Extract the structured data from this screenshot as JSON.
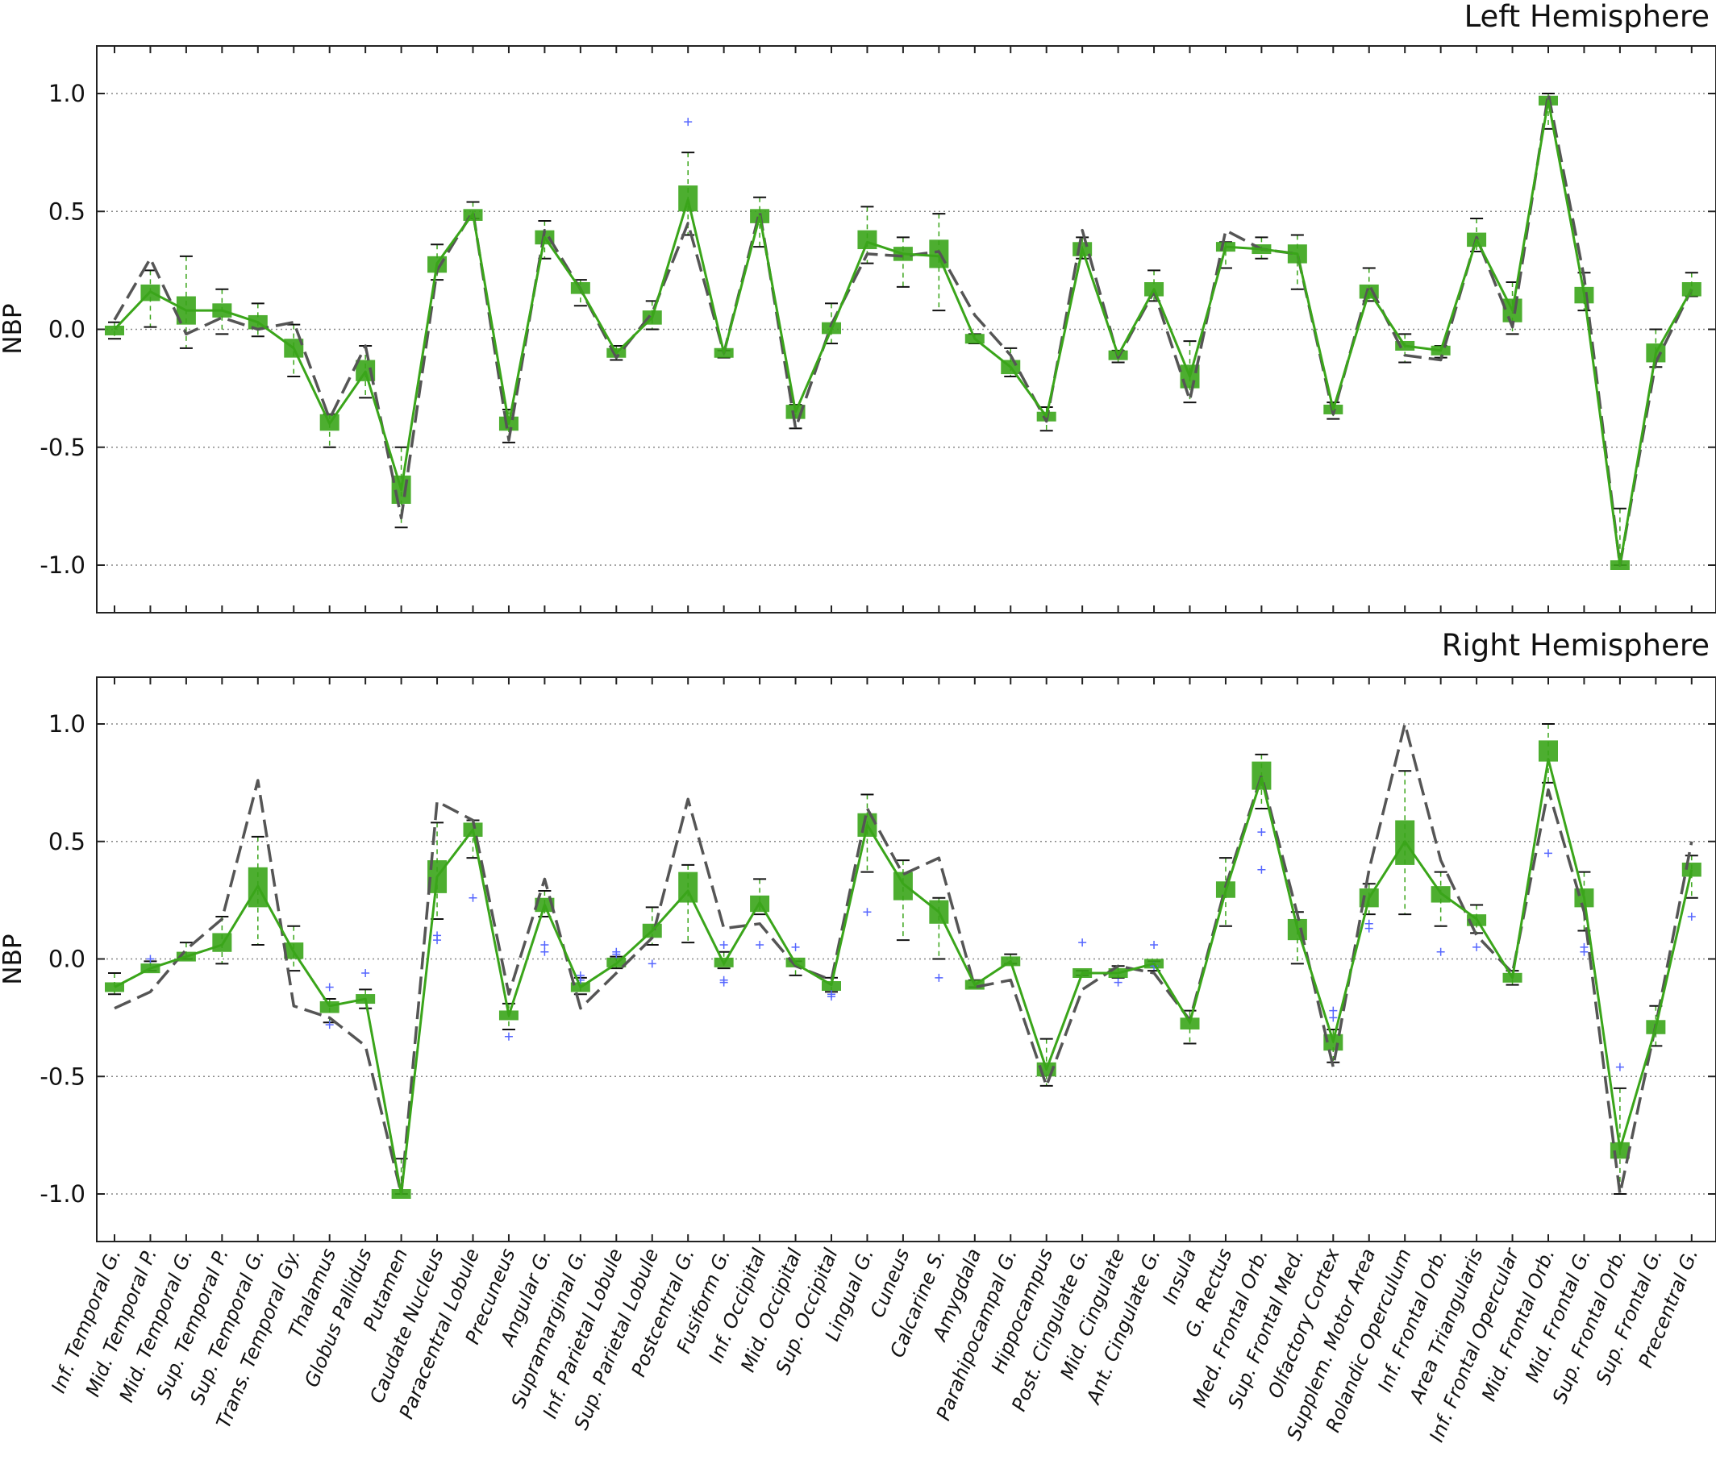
{
  "chart_data": [
    {
      "type": "line",
      "title": "Left Hemisphere",
      "ylabel": "NBP",
      "ylim": [
        -1.2,
        1.2
      ],
      "yticks": [
        1.0,
        0.5,
        0.0,
        -0.5,
        -1.0
      ],
      "ytick_labels": [
        "1.0",
        "0.5",
        "0.0",
        "-0.5",
        "-1.0"
      ],
      "grid": "horizontal dotted",
      "categories": [
        "Inf. Temporal G.",
        "Mid. Temporal P.",
        "Mid. Temporal G.",
        "Sup. Temporal P.",
        "Sup. Temporal G.",
        "Trans. Temporal Gy.",
        "Thalamus",
        "Globus Pallidus",
        "Putamen",
        "Caudate Nucleus",
        "Paracentral Lobule",
        "Precuneus",
        "Angular G.",
        "Supramarginal G.",
        "Inf. Parietal Lobule",
        "Sup. Parietal Lobule",
        "Postcentral G.",
        "Fusiform G.",
        "Inf. Occipital",
        "Mid. Occipital",
        "Sup. Occipital",
        "Lingual G.",
        "Cuneus",
        "Calcarine S.",
        "Amygdala",
        "Parahipocampal G.",
        "Hippocampus",
        "Post. Cingulate G.",
        "Mid. Cingulate",
        "Ant. Cingulate G.",
        "Insula",
        "G. Rectus",
        "Med. Frontal Orb.",
        "Sup. Frontal Med.",
        "Olfactory Cortex",
        "Supplem. Motor Area",
        "Rolandic Operculum",
        "Inf. Frontal Orb.",
        "Area Triangularis",
        "Inf. Frontal Opercular",
        "Mid. Frontal  Orb.",
        "Mid. Frontal  G.",
        "Sup. Frontal Orb.",
        "Sup. Frontal G.",
        "Precentral G."
      ],
      "series": [
        {
          "kind": "median-line",
          "color": "#3aa51a",
          "values": [
            0.0,
            0.16,
            0.08,
            0.08,
            0.03,
            -0.08,
            -0.4,
            -0.18,
            -0.68,
            0.28,
            0.49,
            -0.4,
            0.39,
            0.17,
            -0.1,
            0.05,
            0.55,
            -0.1,
            0.48,
            -0.35,
            0.0,
            0.37,
            0.32,
            0.31,
            -0.04,
            -0.16,
            -0.37,
            0.34,
            -0.11,
            0.17,
            -0.2,
            0.35,
            0.34,
            0.32,
            -0.34,
            0.16,
            -0.07,
            -0.09,
            0.38,
            0.08,
            0.97,
            0.15,
            -1.0,
            -0.1,
            0.17
          ]
        },
        {
          "kind": "reference-line",
          "color": "#555555",
          "dash": true,
          "values": [
            0.04,
            0.3,
            -0.02,
            0.05,
            0.0,
            0.03,
            -0.38,
            -0.07,
            -0.8,
            0.25,
            0.5,
            -0.47,
            0.42,
            0.17,
            -0.12,
            0.07,
            0.45,
            -0.1,
            0.5,
            -0.42,
            0.02,
            0.32,
            0.31,
            0.33,
            0.06,
            -0.11,
            -0.39,
            0.42,
            -0.12,
            0.16,
            -0.3,
            0.42,
            0.34,
            0.32,
            -0.36,
            0.19,
            -0.11,
            -0.13,
            0.39,
            0.01,
            1.0,
            0.22,
            -1.0,
            -0.14,
            0.17
          ]
        }
      ],
      "boxes": {
        "q1": [
          -0.02,
          0.12,
          0.02,
          0.05,
          0.0,
          -0.12,
          -0.43,
          -0.22,
          -0.74,
          0.24,
          0.46,
          -0.43,
          0.36,
          0.15,
          -0.12,
          0.02,
          0.5,
          -0.11,
          0.45,
          -0.38,
          -0.02,
          0.34,
          0.29,
          0.26,
          -0.06,
          -0.19,
          -0.39,
          0.31,
          -0.13,
          0.14,
          -0.25,
          0.33,
          0.32,
          0.28,
          -0.36,
          0.13,
          -0.09,
          -0.11,
          0.35,
          0.03,
          0.95,
          0.11,
          -1.0,
          -0.14,
          0.14
        ],
        "q3": [
          0.01,
          0.19,
          0.14,
          0.11,
          0.06,
          -0.04,
          -0.36,
          -0.13,
          -0.62,
          0.31,
          0.51,
          -0.37,
          0.42,
          0.2,
          -0.08,
          0.08,
          0.61,
          -0.09,
          0.51,
          -0.32,
          0.03,
          0.42,
          0.35,
          0.38,
          -0.02,
          -0.13,
          -0.35,
          0.37,
          -0.09,
          0.2,
          -0.15,
          0.37,
          0.36,
          0.36,
          -0.32,
          0.19,
          -0.05,
          -0.07,
          0.41,
          0.13,
          0.99,
          0.18,
          -1.0,
          -0.06,
          0.2
        ],
        "wlow": [
          -0.04,
          0.01,
          -0.08,
          -0.02,
          -0.03,
          -0.2,
          -0.5,
          -0.29,
          -0.84,
          0.21,
          0.47,
          -0.48,
          0.3,
          0.1,
          -0.13,
          0.0,
          0.4,
          -0.12,
          0.35,
          -0.42,
          -0.06,
          0.28,
          0.18,
          0.08,
          -0.06,
          -0.2,
          -0.43,
          0.3,
          -0.14,
          0.12,
          -0.31,
          0.26,
          0.3,
          0.17,
          -0.38,
          0.12,
          -0.14,
          -0.12,
          0.33,
          -0.02,
          0.85,
          0.08,
          -1.0,
          -0.16,
          0.14
        ],
        "whigh": [
          0.03,
          0.25,
          0.31,
          0.17,
          0.11,
          0.02,
          -0.36,
          -0.07,
          -0.5,
          0.36,
          0.54,
          -0.34,
          0.46,
          0.21,
          -0.07,
          0.12,
          0.75,
          -0.09,
          0.56,
          -0.32,
          0.11,
          0.52,
          0.39,
          0.49,
          -0.02,
          -0.08,
          -0.33,
          0.39,
          -0.09,
          0.25,
          -0.05,
          0.37,
          0.39,
          0.4,
          -0.31,
          0.26,
          -0.02,
          -0.07,
          0.47,
          0.2,
          1.0,
          0.24,
          -0.76,
          0.0,
          0.24
        ],
        "outliers": [
          {
            "i": 16,
            "v": 0.88
          }
        ]
      }
    },
    {
      "type": "line",
      "title": "Right Hemisphere",
      "ylabel": "NBP",
      "ylim": [
        -1.2,
        1.2
      ],
      "yticks": [
        1.0,
        0.5,
        0.0,
        -0.5,
        -1.0
      ],
      "ytick_labels": [
        "1.0",
        "0.5",
        "0.0",
        "-0.5",
        "-1.0"
      ],
      "grid": "horizontal dotted",
      "categories": [
        "Inf. Temporal G.",
        "Mid. Temporal P.",
        "Mid. Temporal G.",
        "Sup. Temporal P.",
        "Sup. Temporal G.",
        "Trans. Temporal Gy.",
        "Thalamus",
        "Globus Pallidus",
        "Putamen",
        "Caudate Nucleus",
        "Paracentral Lobule",
        "Precuneus",
        "Angular G.",
        "Supramarginal G.",
        "Inf. Parietal Lobule",
        "Sup. Parietal Lobule",
        "Postcentral G.",
        "Fusiform G.",
        "Inf. Occipital",
        "Mid. Occipital",
        "Sup. Occipital",
        "Lingual G.",
        "Cuneus",
        "Calcarine S.",
        "Amygdala",
        "Parahipocampal G.",
        "Hippocampus",
        "Post. Cingulate G.",
        "Mid. Cingulate",
        "Ant. Cingulate G.",
        "Insula",
        "G. Rectus",
        "Med. Frontal Orb.",
        "Sup. Frontal Med.",
        "Olfactory Cortex",
        "Supplem. Motor Area",
        "Rolandic Operculum",
        "Inf. Frontal Orb.",
        "Area Triangularis",
        "Inf. Frontal Opercular",
        "Mid. Frontal  Orb.",
        "Mid. Frontal  G.",
        "Sup. Frontal Orb.",
        "Sup. Frontal G.",
        "Precentral G."
      ],
      "series": [
        {
          "kind": "median-line",
          "color": "#3aa51a",
          "values": [
            -0.12,
            -0.04,
            0.01,
            0.06,
            0.31,
            0.03,
            -0.2,
            -0.17,
            -1.0,
            0.35,
            0.55,
            -0.24,
            0.23,
            -0.12,
            -0.02,
            0.12,
            0.29,
            -0.02,
            0.24,
            -0.02,
            -0.11,
            0.57,
            0.32,
            0.2,
            -0.11,
            -0.01,
            -0.47,
            -0.06,
            -0.06,
            -0.02,
            -0.27,
            0.29,
            0.77,
            0.13,
            -0.35,
            0.26,
            0.5,
            0.28,
            0.17,
            -0.08,
            0.85,
            0.26,
            -0.81,
            -0.29,
            0.38
          ]
        },
        {
          "kind": "reference-line",
          "color": "#555555",
          "dash": true,
          "values": [
            -0.21,
            -0.14,
            0.04,
            0.17,
            0.76,
            -0.2,
            -0.25,
            -0.37,
            -1.0,
            0.67,
            0.59,
            -0.15,
            0.34,
            -0.21,
            -0.06,
            0.09,
            0.68,
            0.13,
            0.15,
            -0.03,
            -0.09,
            0.64,
            0.36,
            0.43,
            -0.12,
            -0.09,
            -0.54,
            -0.13,
            -0.03,
            -0.06,
            -0.26,
            0.31,
            0.78,
            0.19,
            -0.46,
            0.38,
            1.0,
            0.42,
            0.1,
            -0.06,
            0.72,
            0.2,
            -1.0,
            -0.28,
            0.5
          ]
        }
      ],
      "boxes": {
        "q1": [
          -0.14,
          -0.05,
          0.0,
          0.03,
          0.22,
          0.0,
          -0.23,
          -0.19,
          -1.0,
          0.28,
          0.52,
          -0.26,
          0.2,
          -0.14,
          -0.03,
          0.09,
          0.24,
          -0.03,
          0.2,
          -0.03,
          -0.13,
          0.52,
          0.25,
          0.15,
          -0.12,
          -0.02,
          -0.5,
          -0.07,
          -0.07,
          -0.03,
          -0.3,
          0.26,
          0.72,
          0.08,
          -0.39,
          0.22,
          0.4,
          0.24,
          0.14,
          -0.09,
          0.84,
          0.22,
          -0.85,
          -0.32,
          0.35
        ],
        "q3": [
          -0.1,
          -0.03,
          0.02,
          0.11,
          0.39,
          0.07,
          -0.18,
          -0.15,
          -1.0,
          0.42,
          0.58,
          -0.22,
          0.26,
          -0.1,
          0.0,
          0.15,
          0.37,
          0.0,
          0.27,
          0.0,
          -0.1,
          0.62,
          0.37,
          0.25,
          -0.1,
          0.0,
          -0.44,
          -0.05,
          -0.05,
          -0.01,
          -0.25,
          0.33,
          0.84,
          0.17,
          -0.32,
          0.3,
          0.59,
          0.31,
          0.19,
          -0.07,
          0.93,
          0.3,
          -0.78,
          -0.26,
          0.41
        ],
        "wlow": [
          -0.15,
          -0.05,
          0.0,
          -0.02,
          0.06,
          -0.05,
          -0.27,
          -0.21,
          -1.0,
          0.17,
          0.43,
          -0.3,
          0.18,
          -0.15,
          -0.04,
          0.06,
          0.07,
          -0.04,
          0.19,
          -0.07,
          -0.14,
          0.37,
          0.08,
          0.0,
          -0.12,
          -0.02,
          -0.54,
          -0.07,
          -0.08,
          -0.05,
          -0.36,
          0.14,
          0.64,
          -0.02,
          -0.44,
          0.19,
          0.19,
          0.14,
          0.11,
          -0.11,
          0.75,
          0.12,
          -1.0,
          -0.37,
          0.26
        ],
        "whigh": [
          -0.06,
          -0.01,
          0.07,
          0.18,
          0.52,
          0.14,
          -0.17,
          -0.13,
          -0.85,
          0.58,
          0.59,
          -0.19,
          0.29,
          -0.08,
          0.01,
          0.22,
          0.4,
          0.03,
          0.34,
          -0.01,
          -0.08,
          0.7,
          0.42,
          0.26,
          -0.09,
          0.02,
          -0.34,
          -0.05,
          -0.03,
          -0.01,
          -0.22,
          0.43,
          0.87,
          0.2,
          -0.3,
          0.32,
          0.8,
          0.37,
          0.23,
          -0.05,
          1.0,
          0.37,
          -0.55,
          -0.2,
          0.44
        ],
        "outliers": [
          {
            "i": 1,
            "v": 0.0
          },
          {
            "i": 6,
            "v": -0.12
          },
          {
            "i": 6,
            "v": -0.28
          },
          {
            "i": 7,
            "v": -0.06
          },
          {
            "i": 9,
            "v": 0.1
          },
          {
            "i": 9,
            "v": 0.08
          },
          {
            "i": 10,
            "v": 0.26
          },
          {
            "i": 11,
            "v": -0.33
          },
          {
            "i": 12,
            "v": 0.06
          },
          {
            "i": 12,
            "v": 0.03
          },
          {
            "i": 13,
            "v": -0.07
          },
          {
            "i": 13,
            "v": -0.09
          },
          {
            "i": 14,
            "v": 0.03
          },
          {
            "i": 14,
            "v": 0.02
          },
          {
            "i": 15,
            "v": -0.02
          },
          {
            "i": 17,
            "v": 0.06
          },
          {
            "i": 17,
            "v": -0.09
          },
          {
            "i": 17,
            "v": -0.1
          },
          {
            "i": 18,
            "v": 0.06
          },
          {
            "i": 19,
            "v": 0.05
          },
          {
            "i": 20,
            "v": -0.15
          },
          {
            "i": 20,
            "v": -0.16
          },
          {
            "i": 21,
            "v": 0.2
          },
          {
            "i": 23,
            "v": -0.08
          },
          {
            "i": 27,
            "v": 0.07
          },
          {
            "i": 28,
            "v": -0.1
          },
          {
            "i": 29,
            "v": 0.06
          },
          {
            "i": 29,
            "v": -0.03
          },
          {
            "i": 32,
            "v": 0.54
          },
          {
            "i": 32,
            "v": 0.38
          },
          {
            "i": 34,
            "v": -0.22
          },
          {
            "i": 34,
            "v": -0.25
          },
          {
            "i": 35,
            "v": 0.15
          },
          {
            "i": 35,
            "v": 0.13
          },
          {
            "i": 37,
            "v": 0.03
          },
          {
            "i": 38,
            "v": 0.05
          },
          {
            "i": 40,
            "v": 0.45
          },
          {
            "i": 41,
            "v": 0.05
          },
          {
            "i": 41,
            "v": 0.03
          },
          {
            "i": 42,
            "v": -0.46
          },
          {
            "i": 44,
            "v": 0.18
          }
        ]
      }
    }
  ]
}
